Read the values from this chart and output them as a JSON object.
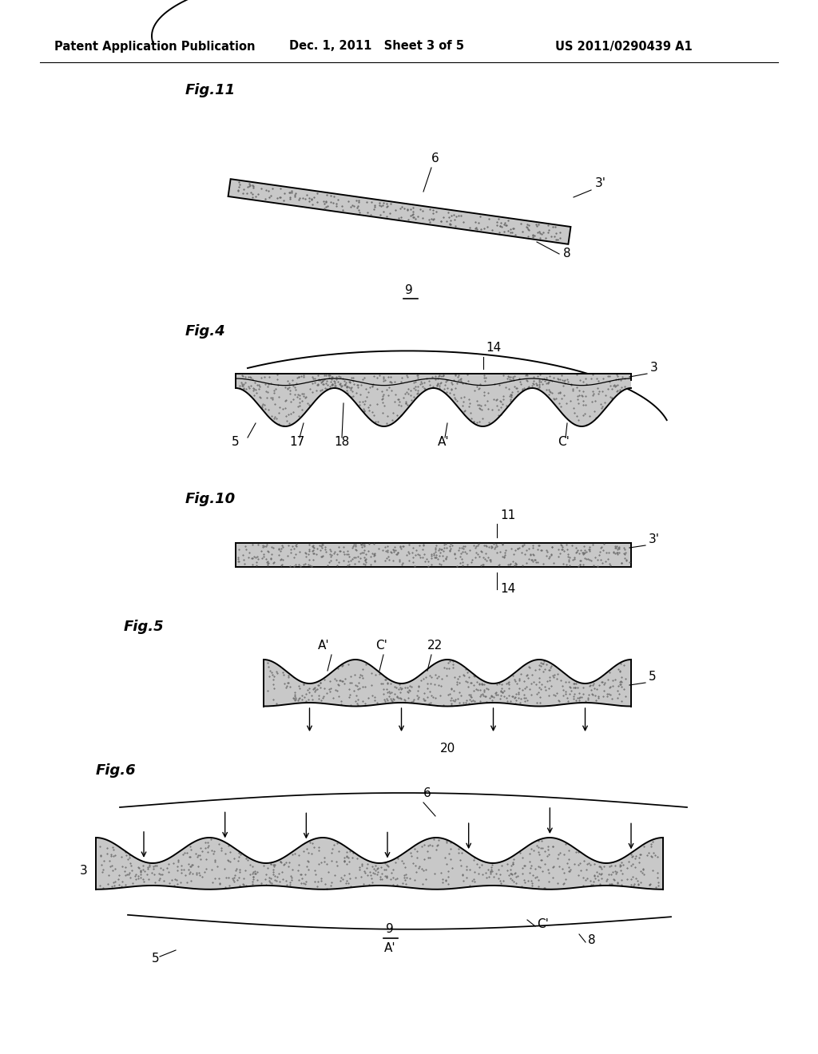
{
  "bg_color": "#ffffff",
  "text_color": "#000000",
  "header_left": "Patent Application Publication",
  "header_mid": "Dec. 1, 2011   Sheet 3 of 5",
  "header_right": "US 2011/0290439 A1",
  "fig11_label": "Fig.11",
  "fig4_label": "Fig.4",
  "fig10_label": "Fig.10",
  "fig5_label": "Fig.5",
  "fig6_label": "Fig.6",
  "fill_color": "#c8c8c8",
  "line_color": "#000000",
  "line_width": 1.4,
  "stipple_color": "#666666"
}
